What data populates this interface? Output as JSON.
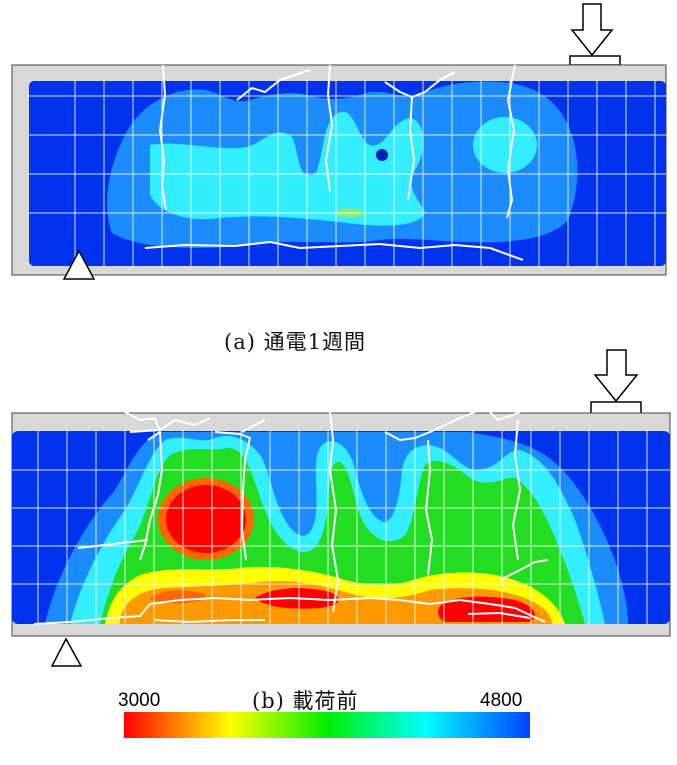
{
  "panels": [
    {
      "id": "a",
      "caption": "(a) 通電1週間"
    },
    {
      "id": "b",
      "caption": "(b) 載荷前"
    }
  ],
  "colorbar": {
    "min_label": "3000",
    "max_label": "4800",
    "colors": [
      "#ff0000",
      "#ffff00",
      "#00ee00",
      "#00ffff",
      "#0044ff"
    ]
  },
  "palette": {
    "beam_frame": "#d8d8d8",
    "deep_blue": "#0033ee",
    "mid_blue": "#1a8cff",
    "cyan": "#33eeff",
    "green": "#22dd22",
    "yellow": "#ffff00",
    "red": "#ff0000",
    "grid": "#ffffff",
    "crack": "#ffffff"
  }
}
